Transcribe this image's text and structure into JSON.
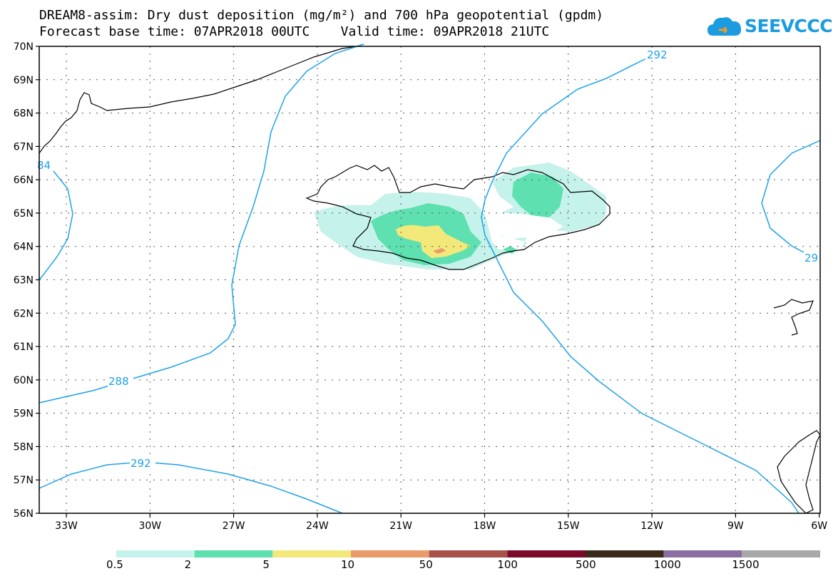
{
  "title": {
    "line1": "DREAM8-assim: Dry dust deposition (mg/m²) and 700 hPa geopotential (gpdm)",
    "line2": "Forecast base time: 07APR2018 00UTC    Valid time: 09APR2018 21UTC"
  },
  "logo": {
    "text": "SEEVCCC",
    "icon": "cloud-logo-icon"
  },
  "map": {
    "lat_labels": [
      "70N",
      "69N",
      "68N",
      "67N",
      "66N",
      "65N",
      "64N",
      "63N",
      "62N",
      "61N",
      "60N",
      "59N",
      "58N",
      "57N",
      "56N"
    ],
    "lon_labels": [
      "33W",
      "30W",
      "27W",
      "24W",
      "21W",
      "18W",
      "15W",
      "12W",
      "9W",
      "6W"
    ],
    "contour_labels": [
      "292",
      "84",
      "288",
      "292",
      "29"
    ],
    "colors": {
      "contour": "#1ea2e8",
      "coast": "#000000",
      "grid": "#555555"
    }
  },
  "colorbar": {
    "labels": [
      "0.5",
      "2",
      "5",
      "10",
      "50",
      "100",
      "500",
      "1000",
      "1500"
    ],
    "colors": [
      "#c5f2ea",
      "#5ee0b0",
      "#f3e97a",
      "#eb9a6b",
      "#a85148",
      "#7a0a2a",
      "#3a2a1c",
      "#8a6fa0",
      "#a8a8a8"
    ]
  }
}
